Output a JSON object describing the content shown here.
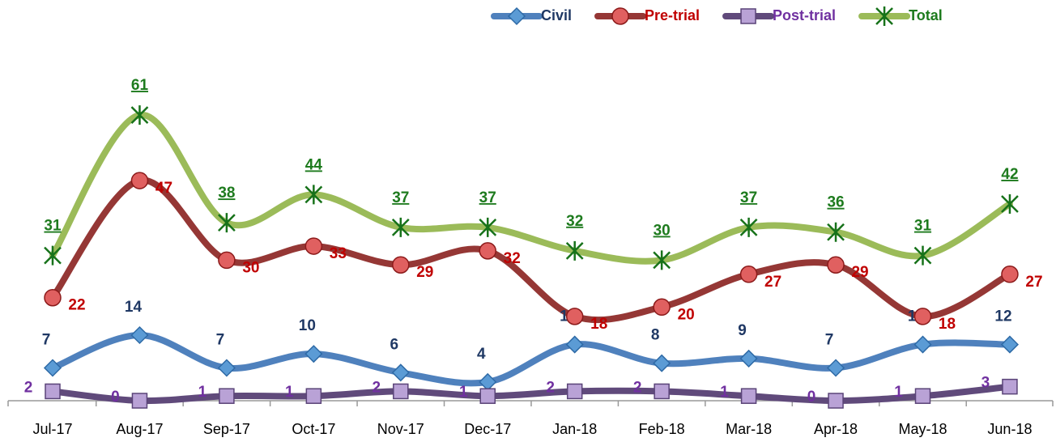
{
  "chart_data": {
    "type": "line",
    "categories": [
      "Jul-17",
      "Aug-17",
      "Sep-17",
      "Oct-17",
      "Nov-17",
      "Dec-17",
      "Jan-18",
      "Feb-18",
      "Mar-18",
      "Apr-18",
      "May-18",
      "Jun-18"
    ],
    "series": [
      {
        "name": "Civil",
        "color": "#4f81bd",
        "label_color": "#1f3864",
        "marker": "diamond",
        "values": [
          7,
          14,
          7,
          10,
          6,
          4,
          12,
          8,
          9,
          7,
          12,
          12
        ]
      },
      {
        "name": "Pre-trial",
        "color": "#953735",
        "label_color": "#c00000",
        "marker": "circle",
        "values": [
          22,
          47,
          30,
          33,
          29,
          32,
          18,
          20,
          27,
          29,
          18,
          27
        ]
      },
      {
        "name": "Post-trial",
        "color": "#604a7b",
        "label_color": "#7030a0",
        "marker": "square",
        "values": [
          2,
          0,
          1,
          1,
          2,
          1,
          2,
          2,
          1,
          0,
          1,
          3
        ]
      },
      {
        "name": "Total",
        "color": "#9bbb59",
        "label_color": "#1e7b1e",
        "marker": "star",
        "values": [
          31,
          61,
          38,
          44,
          37,
          37,
          32,
          30,
          37,
          36,
          31,
          42
        ]
      }
    ],
    "ylim": [
      0,
      70
    ],
    "legend": "top-right",
    "smooth": true
  }
}
